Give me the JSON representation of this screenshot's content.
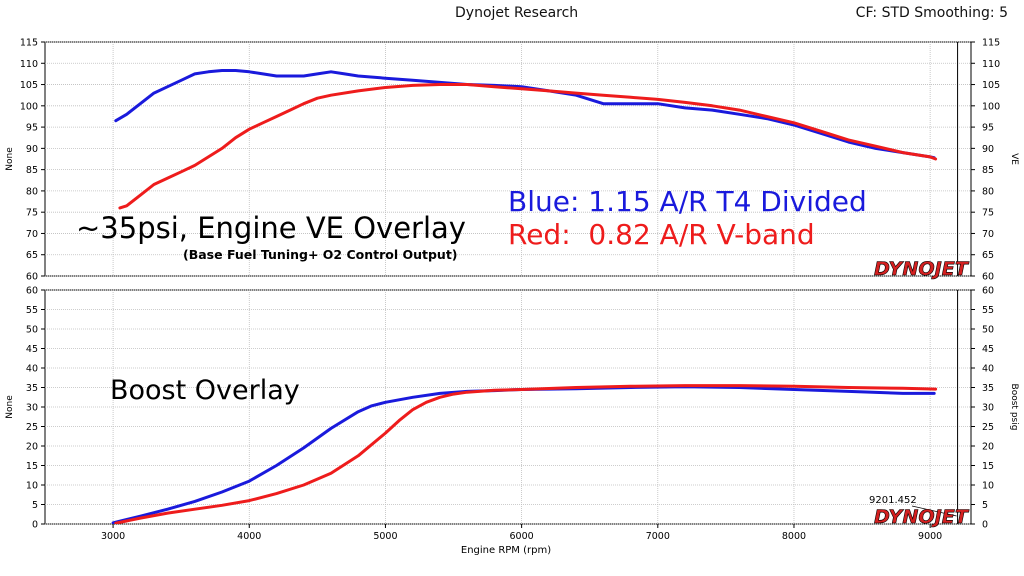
{
  "header": {
    "title": "Dynojet Research",
    "settings": "CF: STD Smoothing: 5"
  },
  "colors": {
    "blue": "#1a1adc",
    "red": "#ee1c1c",
    "grid": "#bdbdbd",
    "marker": "#000000"
  },
  "brand": {
    "logo": "DYNOJET"
  },
  "chart_data": [
    {
      "type": "line",
      "x_domain": [
        2500,
        9300
      ],
      "ylim": [
        60,
        115
      ],
      "yticks": [
        60,
        65,
        70,
        75,
        80,
        85,
        90,
        95,
        100,
        105,
        110,
        115
      ],
      "ylabel_left": "None",
      "ylabel_right": "VE",
      "grid": true,
      "marker_rpm": 9201.452,
      "annotations": {
        "title": "~35psi, Engine VE Overlay",
        "subtitle": "(Base Fuel Tuning+ O2 Control Output)",
        "legend_blue": "Blue: 1.15 A/R T4 Divided",
        "legend_red": "Red:  0.82 A/R V-band"
      },
      "series": [
        {
          "color_key": "blue",
          "x": [
            3020,
            3100,
            3200,
            3300,
            3400,
            3500,
            3600,
            3700,
            3800,
            3900,
            4000,
            4100,
            4200,
            4300,
            4400,
            4500,
            4600,
            4700,
            4800,
            5000,
            5200,
            5400,
            5600,
            5800,
            6000,
            6200,
            6400,
            6600,
            6800,
            7000,
            7200,
            7400,
            7600,
            7800,
            8000,
            8200,
            8400,
            8600,
            8800,
            9000,
            9030
          ],
          "y": [
            96.5,
            98,
            100.5,
            103,
            104.5,
            106,
            107.5,
            108,
            108.3,
            108.3,
            108,
            107.5,
            107,
            107,
            107,
            107.5,
            108,
            107.5,
            107,
            106.5,
            106,
            105.5,
            105,
            104.8,
            104.5,
            103.5,
            102.5,
            100.5,
            100.5,
            100.5,
            99.5,
            99,
            98,
            97,
            95.5,
            93.5,
            91.5,
            90,
            89,
            88,
            87.8
          ]
        },
        {
          "color_key": "red",
          "x": [
            3050,
            3100,
            3200,
            3300,
            3400,
            3500,
            3600,
            3700,
            3800,
            3900,
            4000,
            4100,
            4200,
            4300,
            4400,
            4500,
            4600,
            4800,
            5000,
            5200,
            5400,
            5600,
            5800,
            6000,
            6200,
            6400,
            6600,
            6800,
            7000,
            7200,
            7400,
            7600,
            7800,
            8000,
            8200,
            8400,
            8600,
            8800,
            9000,
            9040
          ],
          "y": [
            76,
            76.5,
            79,
            81.5,
            83,
            84.5,
            86,
            88,
            90,
            92.5,
            94.5,
            96,
            97.5,
            99,
            100.5,
            101.8,
            102.5,
            103.5,
            104.3,
            104.8,
            105,
            105,
            104.5,
            104,
            103.5,
            103,
            102.5,
            102,
            101.5,
            100.8,
            100,
            99,
            97.5,
            96,
            94,
            92,
            90.5,
            89,
            88,
            87.5
          ]
        }
      ]
    },
    {
      "type": "line",
      "x_domain": [
        2500,
        9300
      ],
      "xticks": [
        3000,
        4000,
        5000,
        6000,
        7000,
        8000,
        9000
      ],
      "xlabel": "Engine RPM  (rpm)",
      "ylim": [
        0,
        60
      ],
      "yticks": [
        0,
        5,
        10,
        15,
        20,
        25,
        30,
        35,
        40,
        45,
        50,
        55,
        60
      ],
      "ylabel_left": "None",
      "ylabel_right": "Boost psig",
      "grid": true,
      "marker_rpm": 9201.452,
      "marker_label": "9201.452",
      "annotations": {
        "title": "Boost Overlay"
      },
      "series": [
        {
          "color_key": "blue",
          "x": [
            3000,
            3200,
            3400,
            3600,
            3800,
            4000,
            4200,
            4400,
            4600,
            4800,
            4900,
            5000,
            5200,
            5400,
            5600,
            5800,
            6000,
            6400,
            6800,
            7200,
            7600,
            8000,
            8400,
            8800,
            9030
          ],
          "y": [
            0.3,
            2,
            3.8,
            5.8,
            8.2,
            11,
            15,
            19.5,
            24.5,
            28.8,
            30.3,
            31.2,
            32.5,
            33.5,
            34,
            34.2,
            34.5,
            34.7,
            35,
            35.2,
            35,
            34.5,
            34,
            33.5,
            33.5
          ]
        },
        {
          "color_key": "red",
          "x": [
            3020,
            3200,
            3400,
            3600,
            3800,
            4000,
            4200,
            4400,
            4600,
            4800,
            5000,
            5100,
            5200,
            5300,
            5400,
            5500,
            5600,
            5800,
            6000,
            6400,
            6800,
            7200,
            7600,
            8000,
            8400,
            8800,
            9040
          ],
          "y": [
            0.2,
            1.5,
            2.8,
            3.8,
            4.8,
            6,
            7.8,
            10,
            13,
            17.5,
            23.3,
            26.5,
            29.3,
            31.2,
            32.5,
            33.3,
            33.8,
            34.3,
            34.5,
            35,
            35.3,
            35.5,
            35.5,
            35.3,
            35,
            34.8,
            34.6
          ]
        }
      ]
    }
  ]
}
